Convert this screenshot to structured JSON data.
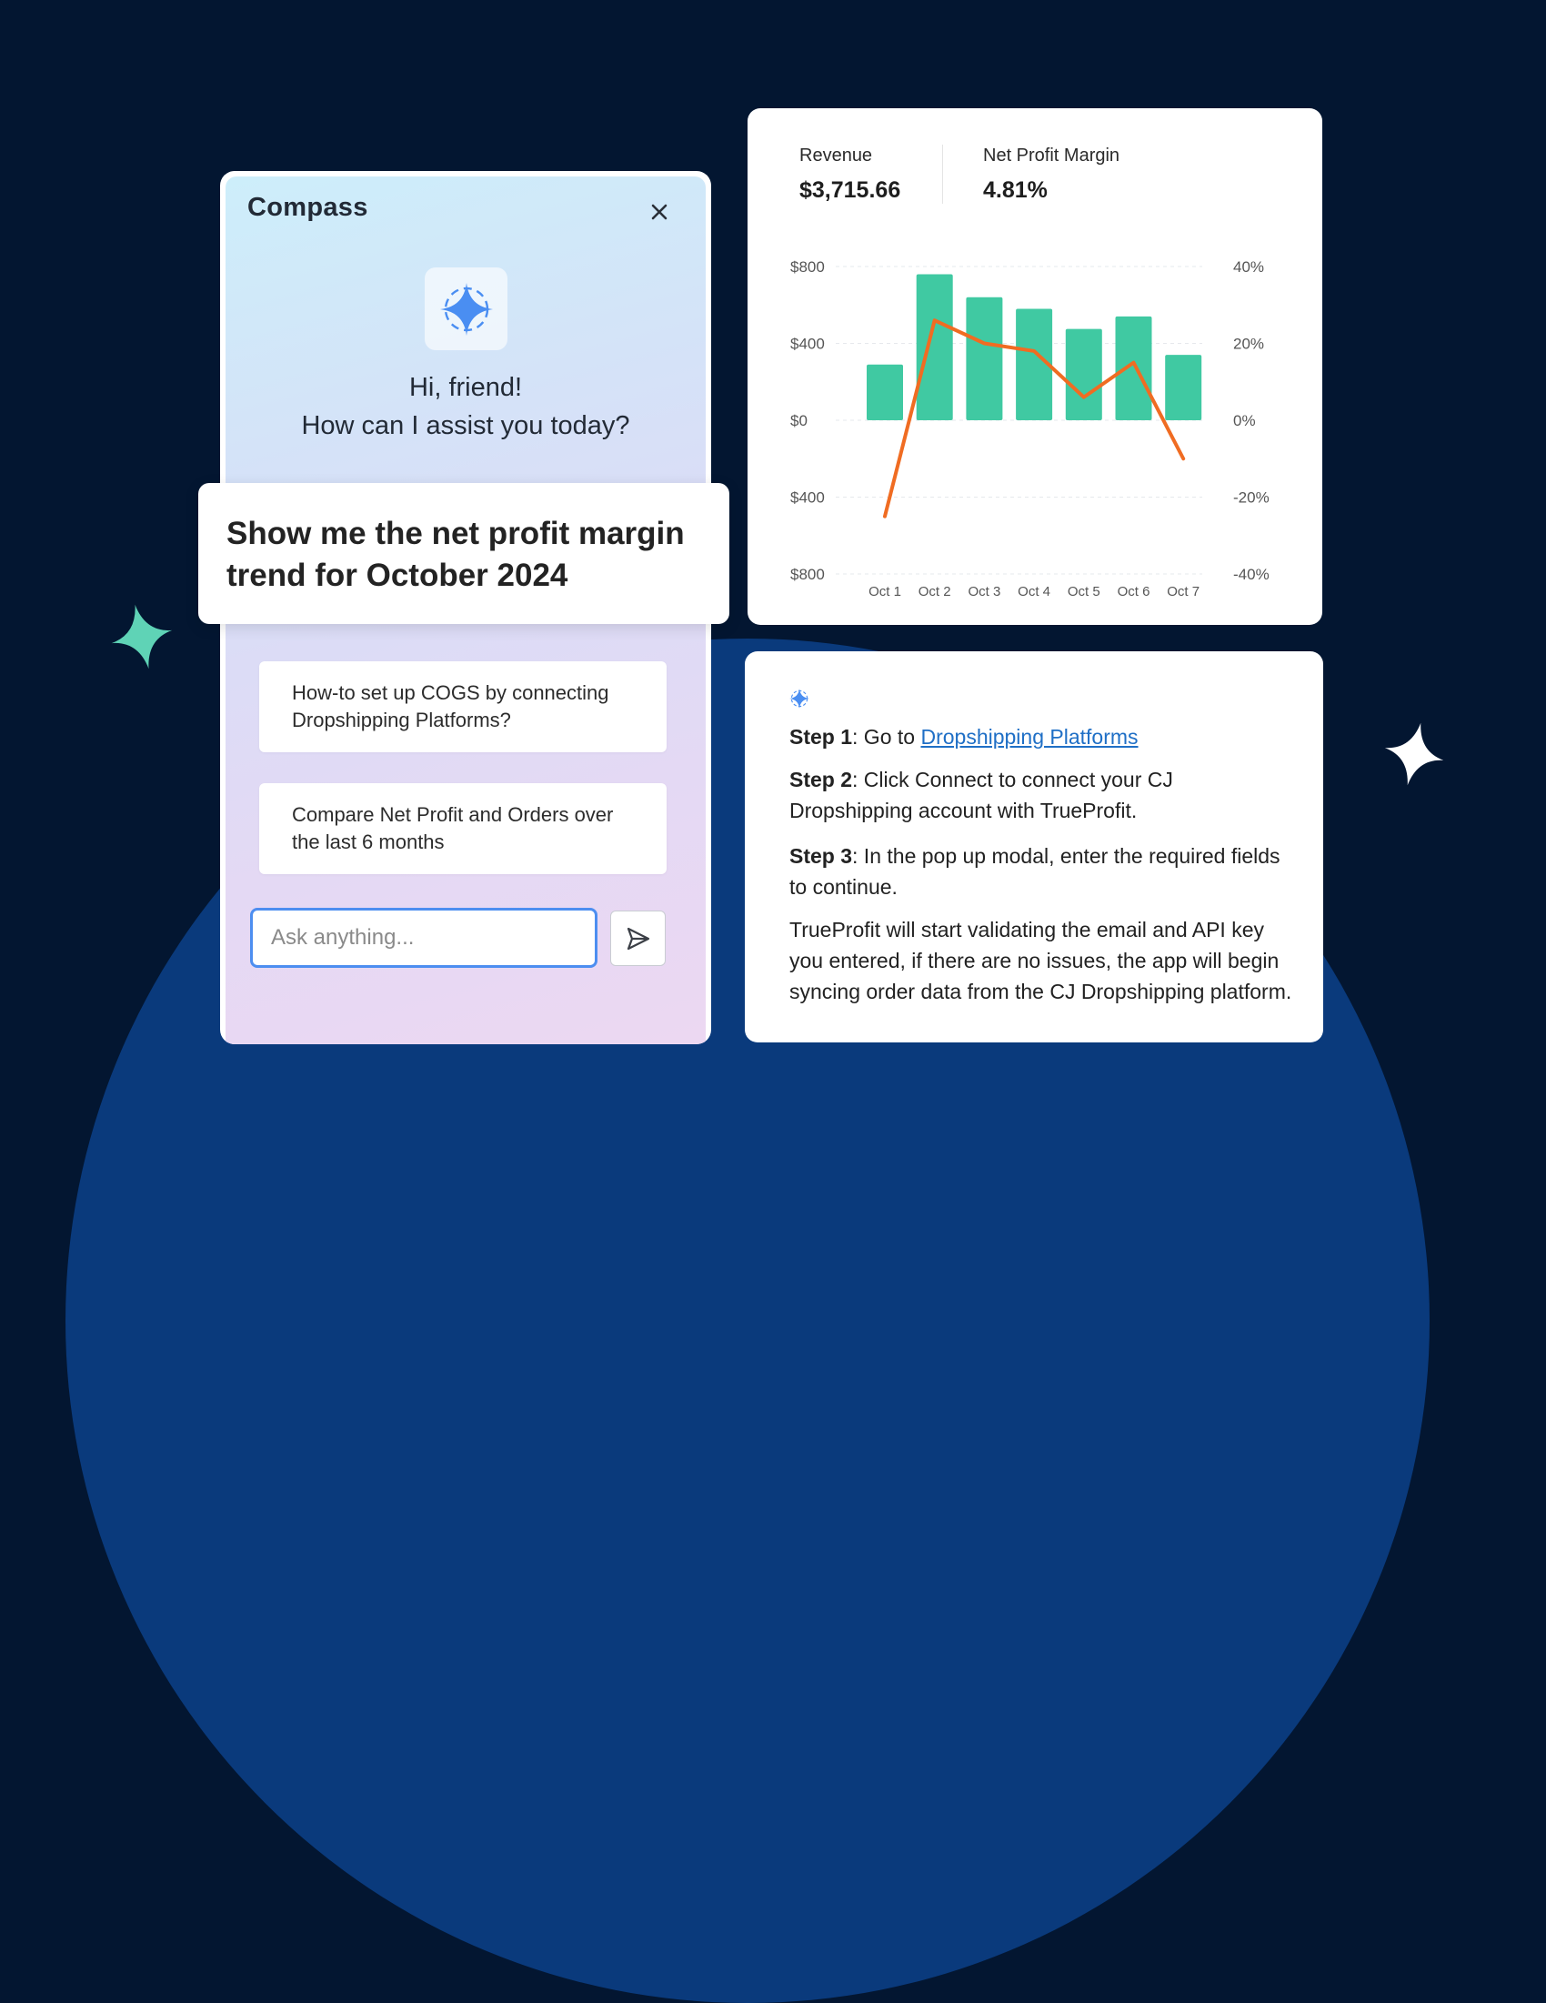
{
  "chat": {
    "title": "Compass",
    "greeting_line1": "Hi, friend!",
    "greeting_line2": "How can I assist you today?",
    "prompt": "Show me the net profit margin trend for October 2024",
    "suggestions": [
      "How-to set up COGS by connecting Dropshipping Platforms?",
      "Compare Net Profit and Orders over the last 6 months"
    ],
    "input_placeholder": "Ask anything..."
  },
  "metrics": {
    "revenue_label": "Revenue",
    "revenue_value": "$3,715.66",
    "margin_label": "Net Profit Margin",
    "margin_value": "4.81%"
  },
  "chart_data": {
    "type": "bar+line",
    "categories": [
      "Oct 1",
      "Oct 2",
      "Oct 3",
      "Oct 4",
      "Oct 5",
      "Oct 6",
      "Oct 7"
    ],
    "series": [
      {
        "axis": "left",
        "type": "bar",
        "color": "#40c9a2",
        "values": [
          290,
          760,
          640,
          580,
          475,
          540,
          340
        ]
      },
      {
        "axis": "right",
        "type": "line",
        "color": "#f06c22",
        "values": [
          -25,
          26,
          20,
          18,
          6,
          15,
          -10
        ]
      }
    ],
    "y_left_ticks": [
      "$800",
      "$400",
      "$0",
      "$400",
      "$800"
    ],
    "y_left_range": [
      -800,
      800
    ],
    "y_right_ticks": [
      "40%",
      "20%",
      "0%",
      "-20%",
      "-40%"
    ],
    "y_right_range": [
      -40,
      40
    ],
    "grid": true
  },
  "answer": {
    "step1_label": "Step 1",
    "step1_text": ": Go to ",
    "step1_link": "Dropshipping Platforms",
    "step2_label": "Step 2",
    "step2_text": ": Click Connect to connect your CJ Dropshipping account with TrueProfit.",
    "step3_label": "Step 3",
    "step3_text": ": In the pop up modal, enter the required fields to continue.",
    "note": "TrueProfit will start validating the email and API key you entered, if there are no issues, the app will begin syncing order data from the CJ Dropshipping platform."
  }
}
